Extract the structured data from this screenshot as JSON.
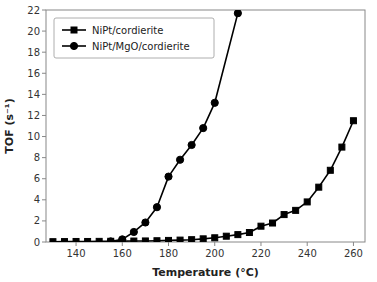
{
  "chart_data": {
    "type": "line",
    "x_label": "Temperature (°C)",
    "y_label": "TOF (s⁻¹)",
    "series": [
      {
        "name": "NiPt/cordierite",
        "color": "#000000",
        "marker": "square",
        "line_style": "solid",
        "x": [
          130,
          135,
          140,
          145,
          150,
          155,
          160,
          165,
          170,
          175,
          180,
          185,
          190,
          195,
          200,
          205,
          210,
          215,
          220,
          225,
          230,
          235,
          240,
          245,
          250,
          255,
          260
        ],
        "values": [
          0.03,
          0.04,
          0.05,
          0.05,
          0.06,
          0.07,
          0.08,
          0.09,
          0.1,
          0.12,
          0.15,
          0.18,
          0.22,
          0.3,
          0.4,
          0.55,
          0.7,
          0.9,
          1.5,
          1.8,
          2.6,
          3.0,
          3.8,
          5.2,
          6.8,
          9.0,
          11.5
        ]
      },
      {
        "name": "NiPt/MgO/cordierite",
        "color": "#000000",
        "marker": "circle",
        "line_style": "solid",
        "x": [
          155,
          160,
          165,
          170,
          175,
          180,
          185,
          190,
          195,
          200,
          210
        ],
        "values": [
          0.05,
          0.25,
          0.95,
          1.85,
          3.3,
          6.2,
          7.8,
          9.2,
          10.8,
          13.2,
          21.7
        ]
      }
    ],
    "xlim": [
      127,
      265
    ],
    "ylim": [
      0,
      22
    ],
    "xticks": [
      140,
      160,
      180,
      200,
      220,
      240,
      260
    ],
    "yticks": [
      0,
      2,
      4,
      6,
      8,
      10,
      12,
      14,
      16,
      18,
      20,
      22
    ],
    "grid": false,
    "legend": "upper left"
  }
}
